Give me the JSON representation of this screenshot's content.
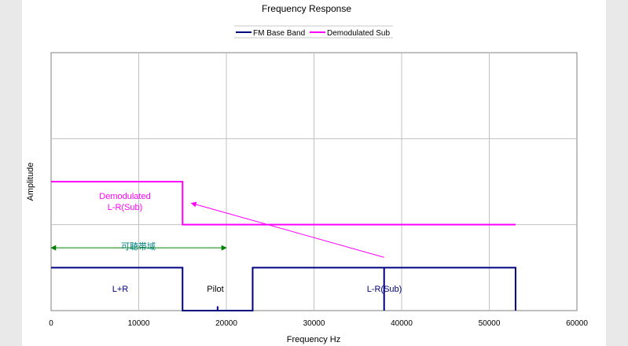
{
  "chart_data": {
    "type": "line",
    "title": "Frequency Response",
    "xlabel": "Frequency Hz",
    "ylabel": "Amplitude",
    "xlim": [
      0,
      60000
    ],
    "ylim": [
      0,
      3
    ],
    "x_ticks": [
      "0",
      "10000",
      "20000",
      "30000",
      "40000",
      "50000",
      "60000"
    ],
    "grid": true,
    "legend_position": "top-center",
    "series": [
      {
        "name": "FM Base Band",
        "color": "#000080",
        "points": [
          [
            0,
            0.5
          ],
          [
            15000,
            0.5
          ],
          [
            15000,
            0
          ],
          [
            19000,
            0
          ],
          [
            19000,
            0.05
          ],
          [
            19000,
            0
          ],
          [
            23000,
            0
          ],
          [
            23000,
            0.5
          ],
          [
            38000,
            0.5
          ],
          [
            38000,
            0
          ],
          [
            38000,
            0.5
          ],
          [
            53000,
            0.5
          ],
          [
            53000,
            0
          ]
        ]
      },
      {
        "name": "Demodulated Sub",
        "color": "#ff00ff",
        "points": [
          [
            0,
            1.5
          ],
          [
            15000,
            1.5
          ],
          [
            15000,
            1.0
          ],
          [
            53000,
            1.0
          ]
        ]
      }
    ],
    "annotations": {
      "demod_line1": "Demodulated",
      "demod_line2": "L-R(Sub)",
      "audible_band": "可聴帯域",
      "lr_sum": "L+R",
      "pilot": "Pilot",
      "lr_sub": "L-R(Sub)"
    },
    "arrows": [
      {
        "kind": "magenta-pointer",
        "from": [
          38000,
          0.62
        ],
        "to": [
          16000,
          1.25
        ],
        "color": "#ff00ff"
      },
      {
        "kind": "green-range",
        "from": [
          0,
          0.73
        ],
        "to": [
          20000,
          0.73
        ],
        "color": "#008000"
      }
    ]
  }
}
